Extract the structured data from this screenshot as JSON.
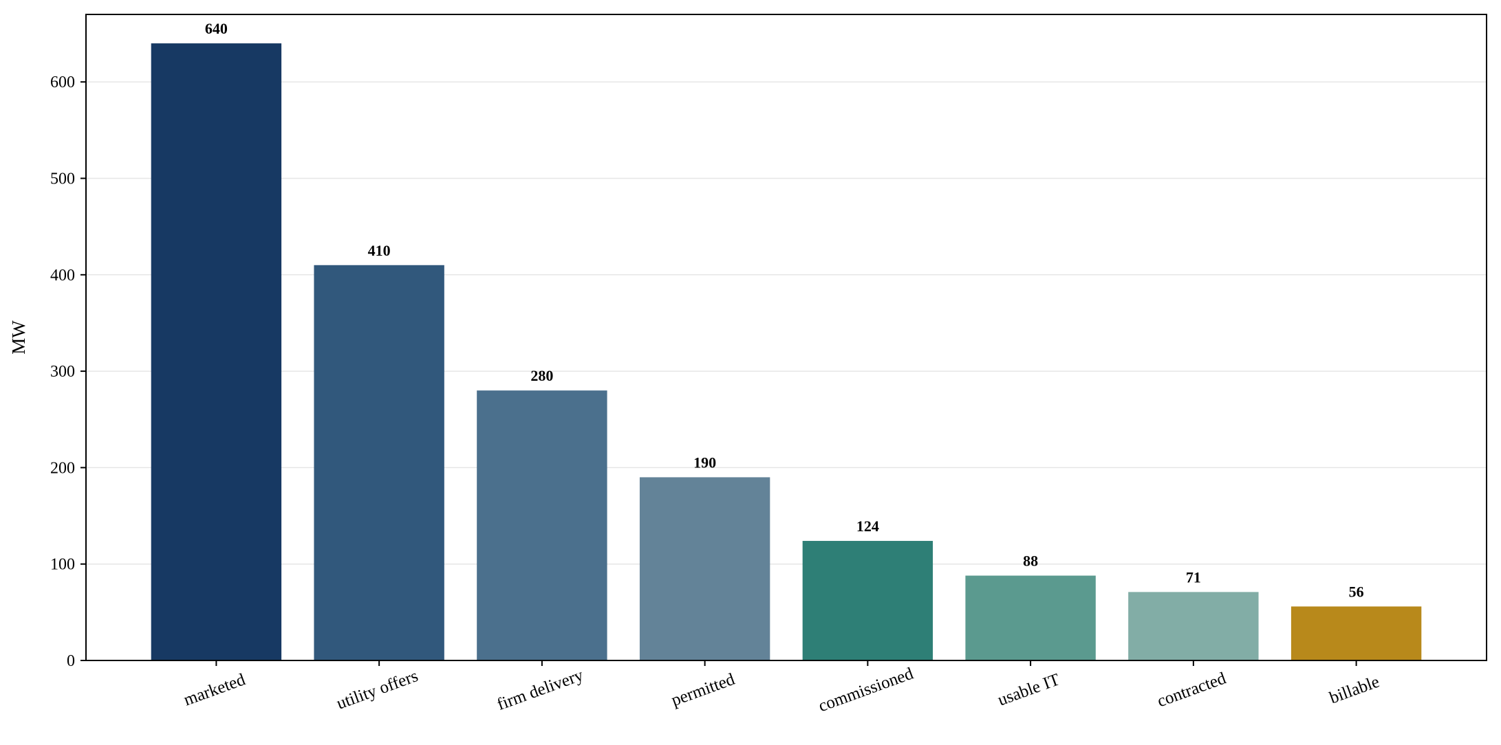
{
  "chart_data": {
    "type": "bar",
    "title": "",
    "xlabel": "",
    "ylabel": "MW",
    "ylim": [
      0,
      670
    ],
    "yticks": [
      0,
      100,
      200,
      300,
      400,
      500,
      600
    ],
    "grid": "y",
    "categories": [
      "marketed",
      "utility offers",
      "firm delivery",
      "permitted",
      "commissioned",
      "usable IT",
      "contracted",
      "billable"
    ],
    "values": [
      640,
      410,
      280,
      190,
      124,
      88,
      71,
      56
    ],
    "data_labels": [
      "640",
      "410",
      "280",
      "190",
      "124",
      "88",
      "71",
      "56"
    ],
    "colors": [
      "#173963",
      "#31587c",
      "#4b708d",
      "#638398",
      "#2e7f76",
      "#5b9a8f",
      "#82ada6",
      "#b8891b"
    ],
    "xtick_rotation_deg": -20
  }
}
